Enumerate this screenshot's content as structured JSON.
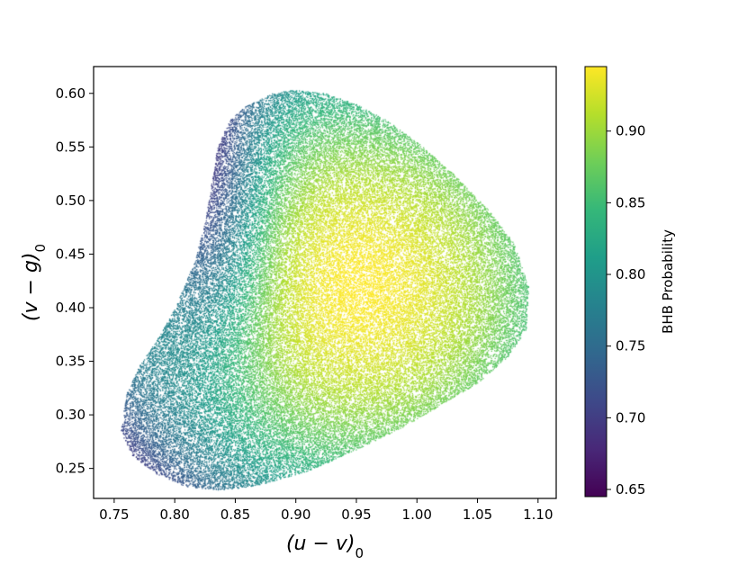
{
  "chart_data": {
    "type": "scatter",
    "xlabel": "(u − v)",
    "xlabel_subscript": "0",
    "ylabel": "(v − g)",
    "ylabel_subscript": "0",
    "xlim": [
      0.733,
      1.115
    ],
    "ylim": [
      0.222,
      0.625
    ],
    "x_ticks": [
      "0.75",
      "0.80",
      "0.85",
      "0.90",
      "0.95",
      "1.00",
      "1.05",
      "1.10"
    ],
    "y_ticks": [
      "0.25",
      "0.30",
      "0.35",
      "0.40",
      "0.45",
      "0.50",
      "0.55",
      "0.60"
    ],
    "grid": false,
    "colorbar": {
      "label": "BHB Probability",
      "colormap": "viridis",
      "range": [
        0.645,
        0.945
      ],
      "ticks": [
        "0.65",
        "0.70",
        "0.75",
        "0.80",
        "0.85",
        "0.90"
      ]
    },
    "point_cloud": {
      "approx_count": 60000,
      "outline": [
        [
          0.755,
          0.285
        ],
        [
          0.76,
          0.32
        ],
        [
          0.77,
          0.345
        ],
        [
          0.785,
          0.37
        ],
        [
          0.8,
          0.4
        ],
        [
          0.815,
          0.44
        ],
        [
          0.825,
          0.48
        ],
        [
          0.83,
          0.515
        ],
        [
          0.835,
          0.55
        ],
        [
          0.845,
          0.575
        ],
        [
          0.86,
          0.59
        ],
        [
          0.88,
          0.6
        ],
        [
          0.9,
          0.604
        ],
        [
          0.925,
          0.6
        ],
        [
          0.95,
          0.59
        ],
        [
          0.975,
          0.575
        ],
        [
          1.0,
          0.555
        ],
        [
          1.03,
          0.525
        ],
        [
          1.06,
          0.49
        ],
        [
          1.08,
          0.46
        ],
        [
          1.092,
          0.42
        ],
        [
          1.09,
          0.38
        ],
        [
          1.075,
          0.355
        ],
        [
          1.05,
          0.33
        ],
        [
          1.02,
          0.31
        ],
        [
          0.99,
          0.29
        ],
        [
          0.95,
          0.268
        ],
        [
          0.91,
          0.248
        ],
        [
          0.87,
          0.235
        ],
        [
          0.84,
          0.23
        ],
        [
          0.81,
          0.233
        ],
        [
          0.785,
          0.245
        ],
        [
          0.765,
          0.262
        ]
      ],
      "peak_probability_at": [
        0.95,
        0.42
      ],
      "min_probability_at": [
        0.825,
        0.5
      ]
    },
    "colors": {
      "viridis_stops": [
        "#440154",
        "#482878",
        "#3e4989",
        "#31688e",
        "#26828e",
        "#1f9e89",
        "#35b779",
        "#6ece58",
        "#b5de2b",
        "#fde725"
      ]
    }
  }
}
